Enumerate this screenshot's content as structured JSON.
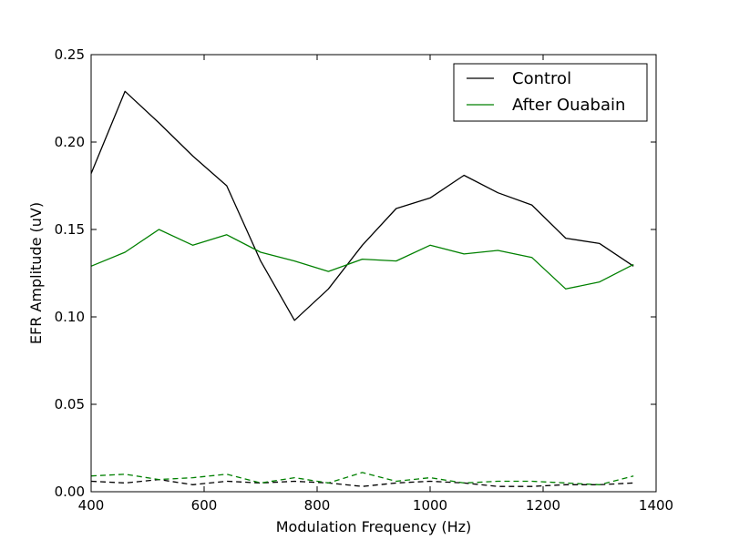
{
  "chart_data": {
    "type": "line",
    "title": "",
    "xlabel": "Modulation Frequency (Hz)",
    "ylabel": "EFR Amplitude (uV)",
    "xlim": [
      400,
      1400
    ],
    "ylim": [
      0,
      0.25
    ],
    "xticks": [
      400,
      600,
      800,
      1000,
      1200,
      1400
    ],
    "xtick_labels": [
      "400",
      "600",
      "800",
      "1000",
      "1200",
      "1400"
    ],
    "yticks": [
      0,
      0.05,
      0.1,
      0.15,
      0.2,
      0.25
    ],
    "ytick_labels": [
      "0.00",
      "0.05",
      "0.10",
      "0.15",
      "0.20",
      "0.25"
    ],
    "grid": false,
    "legend_position": "top-right",
    "x": [
      400,
      460,
      520,
      580,
      640,
      700,
      760,
      820,
      880,
      940,
      1000,
      1060,
      1120,
      1180,
      1240,
      1300,
      1360
    ],
    "series": [
      {
        "name": "Control",
        "color": "#000000",
        "style": "solid",
        "values": [
          0.182,
          0.229,
          0.211,
          0.192,
          0.175,
          0.132,
          0.098,
          0.116,
          0.141,
          0.162,
          0.168,
          0.181,
          0.171,
          0.164,
          0.145,
          0.142,
          0.129
        ]
      },
      {
        "name": "After Ouabain",
        "color": "#008000",
        "style": "solid",
        "values": [
          0.129,
          0.137,
          0.15,
          0.141,
          0.147,
          0.137,
          0.132,
          0.126,
          0.133,
          0.132,
          0.141,
          0.136,
          0.138,
          0.134,
          0.116,
          0.12,
          0.13
        ]
      },
      {
        "color": "#000000",
        "style": "dashed",
        "values": [
          0.006,
          0.005,
          0.007,
          0.004,
          0.006,
          0.005,
          0.006,
          0.005,
          0.003,
          0.005,
          0.006,
          0.005,
          0.003,
          0.003,
          0.004,
          0.004,
          0.005
        ]
      },
      {
        "color": "#008000",
        "style": "dashed",
        "values": [
          0.009,
          0.01,
          0.007,
          0.008,
          0.01,
          0.005,
          0.008,
          0.005,
          0.011,
          0.006,
          0.008,
          0.005,
          0.006,
          0.006,
          0.005,
          0.004,
          0.009
        ]
      }
    ]
  }
}
